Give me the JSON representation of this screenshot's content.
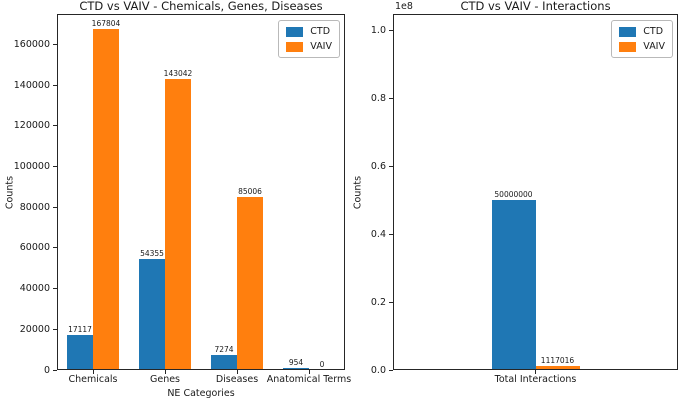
{
  "figure": {
    "background": "#ffffff"
  },
  "colors": {
    "ctd": "#1f77b4",
    "vaiv": "#ff7f0e",
    "spine": "#262626",
    "text": "#1a1a1a"
  },
  "chart_data": [
    {
      "type": "bar",
      "title": "CTD vs VAIV - Chemicals, Genes, Diseases",
      "xlabel": "NE Categories",
      "ylabel": "Counts",
      "categories": [
        "Chemicals",
        "Genes",
        "Diseases",
        "Anatomical Terms"
      ],
      "series": [
        {
          "name": "CTD",
          "color_key": "ctd",
          "values": [
            17117,
            54355,
            7274,
            954
          ]
        },
        {
          "name": "VAIV",
          "color_key": "vaiv",
          "values": [
            167804,
            143042,
            85006,
            0
          ]
        }
      ],
      "ylim": [
        0,
        175000
      ],
      "yticks": [
        0,
        20000,
        40000,
        60000,
        80000,
        100000,
        120000,
        140000,
        160000
      ],
      "ytick_labels": [
        "0",
        "20000",
        "40000",
        "60000",
        "80000",
        "100000",
        "120000",
        "140000",
        "160000"
      ],
      "bar_value_labels": true,
      "grid": false,
      "legend_position": "upper right"
    },
    {
      "type": "bar",
      "title": "CTD vs VAIV - Interactions",
      "xlabel": "",
      "ylabel": "Counts",
      "offset_text": "1e8",
      "categories": [
        "Total Interactions"
      ],
      "series": [
        {
          "name": "CTD",
          "color_key": "ctd",
          "values": [
            50000000
          ]
        },
        {
          "name": "VAIV",
          "color_key": "vaiv",
          "values": [
            1117016
          ]
        }
      ],
      "ylim": [
        0,
        105000000
      ],
      "yticks": [
        0,
        20000000,
        40000000,
        60000000,
        80000000,
        100000000
      ],
      "ytick_labels": [
        "0.0",
        "0.2",
        "0.4",
        "0.6",
        "0.8",
        "1.0"
      ],
      "bar_value_labels": true,
      "grid": false,
      "legend_position": "upper right"
    }
  ]
}
